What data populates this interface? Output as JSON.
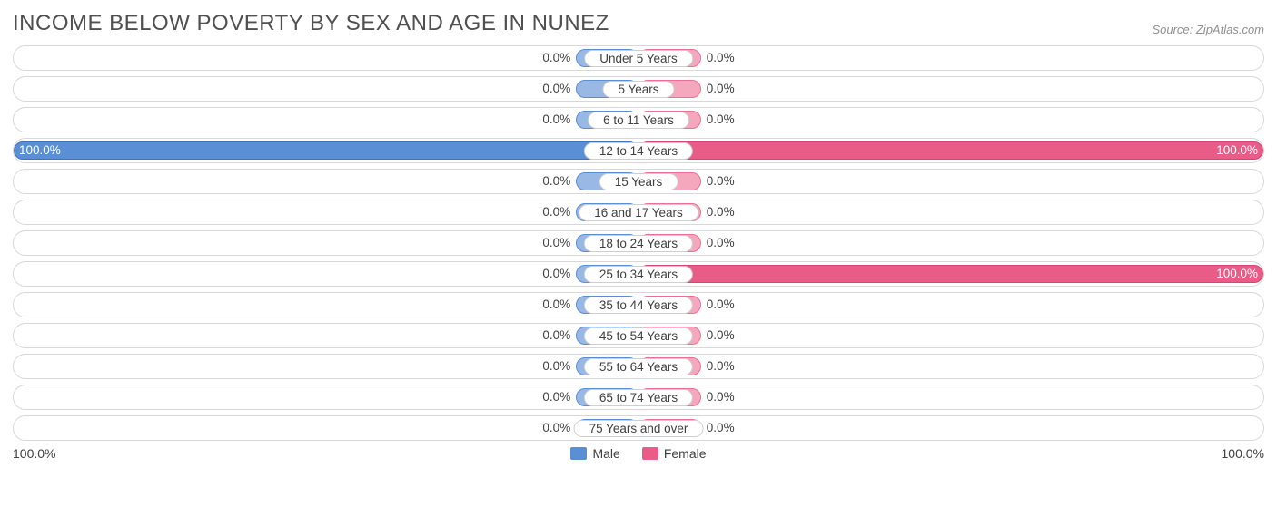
{
  "title": "INCOME BELOW POVERTY BY SEX AND AGE IN NUNEZ",
  "source": "Source: ZipAtlas.com",
  "axis": {
    "left": "100.0%",
    "right": "100.0%"
  },
  "legend": {
    "male": {
      "label": "Male",
      "color": "#5a8fd6"
    },
    "female": {
      "label": "Female",
      "color": "#e85c87"
    }
  },
  "colors": {
    "male_light": "#99b8e3",
    "male_border": "#5a8fd6",
    "male_full": "#5a8fd6",
    "female_light": "#f5a8bd",
    "female_border": "#ed6f95",
    "female_full": "#e85c87",
    "row_border": "#d8d8d8",
    "text": "#404040",
    "title_text": "#505050",
    "source_text": "#909090",
    "bg": "#ffffff"
  },
  "chart": {
    "type": "diverging-bar",
    "min_bar_pct": 10.0,
    "value_format": "0.0%",
    "rows": [
      {
        "age": "Under 5 Years",
        "male": 0.0,
        "female": 0.0
      },
      {
        "age": "5 Years",
        "male": 0.0,
        "female": 0.0
      },
      {
        "age": "6 to 11 Years",
        "male": 0.0,
        "female": 0.0
      },
      {
        "age": "12 to 14 Years",
        "male": 100.0,
        "female": 100.0
      },
      {
        "age": "15 Years",
        "male": 0.0,
        "female": 0.0
      },
      {
        "age": "16 and 17 Years",
        "male": 0.0,
        "female": 0.0
      },
      {
        "age": "18 to 24 Years",
        "male": 0.0,
        "female": 0.0
      },
      {
        "age": "25 to 34 Years",
        "male": 0.0,
        "female": 100.0
      },
      {
        "age": "35 to 44 Years",
        "male": 0.0,
        "female": 0.0
      },
      {
        "age": "45 to 54 Years",
        "male": 0.0,
        "female": 0.0
      },
      {
        "age": "55 to 64 Years",
        "male": 0.0,
        "female": 0.0
      },
      {
        "age": "65 to 74 Years",
        "male": 0.0,
        "female": 0.0
      },
      {
        "age": "75 Years and over",
        "male": 0.0,
        "female": 0.0
      }
    ]
  }
}
